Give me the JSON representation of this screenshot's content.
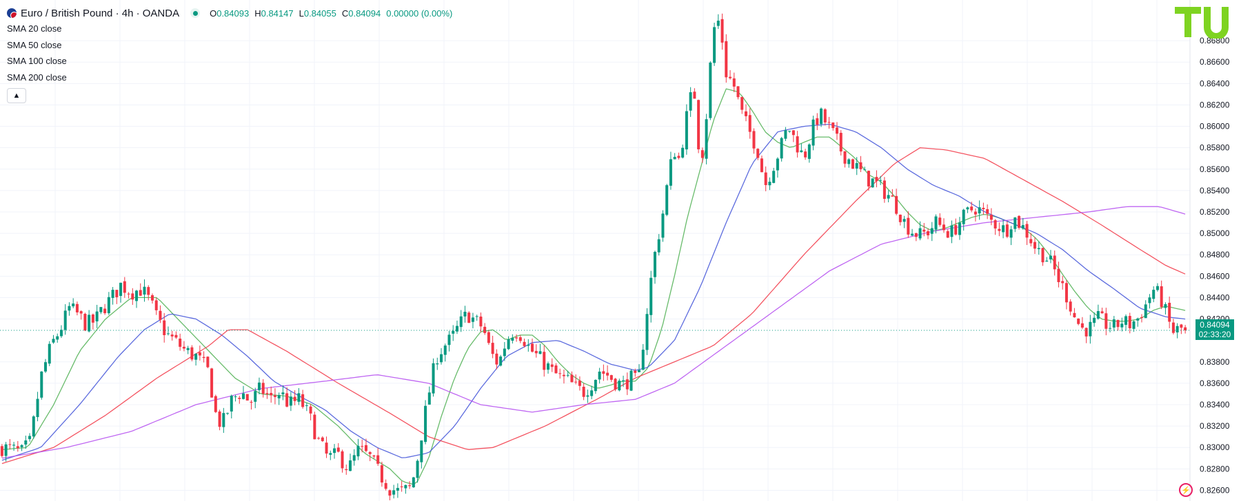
{
  "header": {
    "symbol_title": "Euro / British Pound · 4h · OANDA",
    "ohlc": {
      "o_label": "O",
      "o": "0.84093",
      "h_label": "H",
      "h": "0.84147",
      "l_label": "L",
      "l": "0.84055",
      "c_label": "C",
      "c": "0.84094",
      "change": "0.00000 (0.00%)"
    }
  },
  "indicators": [
    {
      "label": "SMA",
      "value": "20 close",
      "color": "#4caf50"
    },
    {
      "label": "SMA",
      "value": "50 close",
      "color": "#3f51d8"
    },
    {
      "label": "SMA",
      "value": "100 close",
      "color": "#f23645"
    },
    {
      "label": "SMA",
      "value": "200 close",
      "color": "#b44bf0"
    }
  ],
  "price_label": {
    "price": "0.84094",
    "countdown": "02:33:20",
    "color": "#089981"
  },
  "icons": {
    "flag": "eur-gbp-flag-icon",
    "status": "market-status-icon",
    "collapse": "chevron-up-icon",
    "logo": "tu-logo-icon",
    "flash": "lightning-icon"
  },
  "colors": {
    "up": "#089981",
    "down": "#f23645",
    "grid": "#f0f3fa",
    "axis_text": "#131722"
  },
  "chart_data": {
    "type": "candlestick",
    "symbol": "EUR/GBP",
    "timeframe": "4h",
    "ylim": [
      0.825,
      0.8718
    ],
    "ytick_labels": [
      "0.86800",
      "0.86600",
      "0.86400",
      "0.86200",
      "0.86000",
      "0.85800",
      "0.85600",
      "0.85400",
      "0.85200",
      "0.85000",
      "0.84800",
      "0.84600",
      "0.84400",
      "0.84200",
      "0.83800",
      "0.83600",
      "0.83400",
      "0.83200",
      "0.83000",
      "0.82800",
      "0.82600"
    ],
    "yticks": [
      0.868,
      0.866,
      0.864,
      0.862,
      0.86,
      0.858,
      0.856,
      0.854,
      0.852,
      0.85,
      0.848,
      0.846,
      0.844,
      0.842,
      0.838,
      0.836,
      0.834,
      0.832,
      0.83,
      0.828,
      0.826
    ],
    "last_price": 0.84094,
    "candle_count": 300,
    "close_path": [
      [
        0,
        0.83
      ],
      [
        8,
        0.8298
      ],
      [
        15,
        0.8295
      ],
      [
        22,
        0.8305
      ],
      [
        30,
        0.8365
      ],
      [
        38,
        0.8395
      ],
      [
        45,
        0.841
      ],
      [
        52,
        0.843
      ],
      [
        58,
        0.8425
      ],
      [
        65,
        0.8415
      ],
      [
        72,
        0.8418
      ],
      [
        78,
        0.843
      ],
      [
        85,
        0.844
      ],
      [
        92,
        0.8452
      ],
      [
        100,
        0.8445
      ],
      [
        108,
        0.8448
      ],
      [
        115,
        0.8435
      ],
      [
        120,
        0.842
      ],
      [
        128,
        0.8405
      ],
      [
        135,
        0.8398
      ],
      [
        142,
        0.839
      ],
      [
        150,
        0.8385
      ],
      [
        155,
        0.8378
      ],
      [
        160,
        0.837
      ],
      [
        165,
        0.8332
      ],
      [
        170,
        0.832
      ],
      [
        178,
        0.8345
      ],
      [
        185,
        0.8352
      ],
      [
        192,
        0.8342
      ],
      [
        200,
        0.8355
      ],
      [
        208,
        0.8345
      ],
      [
        215,
        0.8352
      ],
      [
        222,
        0.834
      ],
      [
        230,
        0.8345
      ],
      [
        238,
        0.8328
      ],
      [
        245,
        0.8305
      ],
      [
        252,
        0.829
      ],
      [
        260,
        0.8293
      ],
      [
        268,
        0.828
      ],
      [
        276,
        0.8298
      ],
      [
        285,
        0.829
      ],
      [
        292,
        0.8275
      ],
      [
        300,
        0.8262
      ],
      [
        308,
        0.8258
      ],
      [
        316,
        0.8262
      ],
      [
        320,
        0.828
      ],
      [
        324,
        0.831
      ],
      [
        330,
        0.835
      ],
      [
        336,
        0.8385
      ],
      [
        342,
        0.8395
      ],
      [
        348,
        0.8402
      ],
      [
        354,
        0.8415
      ],
      [
        360,
        0.8425
      ],
      [
        366,
        0.8418
      ],
      [
        372,
        0.8412
      ],
      [
        378,
        0.8388
      ],
      [
        384,
        0.8378
      ],
      [
        390,
        0.84
      ],
      [
        396,
        0.841
      ],
      [
        402,
        0.8405
      ],
      [
        408,
        0.8392
      ],
      [
        414,
        0.8385
      ],
      [
        420,
        0.8378
      ],
      [
        426,
        0.837
      ],
      [
        432,
        0.8365
      ],
      [
        438,
        0.8362
      ],
      [
        444,
        0.8355
      ],
      [
        450,
        0.8352
      ],
      [
        456,
        0.836
      ],
      [
        462,
        0.8372
      ],
      [
        468,
        0.8368
      ],
      [
        474,
        0.8362
      ],
      [
        480,
        0.8358
      ],
      [
        486,
        0.8365
      ],
      [
        492,
        0.836
      ],
      [
        496,
        0.84
      ],
      [
        500,
        0.844
      ],
      [
        504,
        0.8475
      ],
      [
        508,
        0.85
      ],
      [
        512,
        0.8525
      ],
      [
        516,
        0.8558
      ],
      [
        520,
        0.8578
      ],
      [
        524,
        0.8568
      ],
      [
        528,
        0.86
      ],
      [
        532,
        0.8625
      ],
      [
        536,
        0.863
      ],
      [
        540,
        0.856
      ],
      [
        544,
        0.86
      ],
      [
        548,
        0.866
      ],
      [
        552,
        0.8705
      ],
      [
        556,
        0.869
      ],
      [
        560,
        0.865
      ],
      [
        566,
        0.8638
      ],
      [
        572,
        0.8612
      ],
      [
        578,
        0.8595
      ],
      [
        584,
        0.858
      ],
      [
        590,
        0.8545
      ],
      [
        596,
        0.8562
      ],
      [
        602,
        0.858
      ],
      [
        608,
        0.86
      ],
      [
        614,
        0.8585
      ],
      [
        620,
        0.857
      ],
      [
        626,
        0.8595
      ],
      [
        632,
        0.8612
      ],
      [
        638,
        0.8602
      ],
      [
        644,
        0.859
      ],
      [
        650,
        0.8575
      ],
      [
        656,
        0.8568
      ],
      [
        662,
        0.856
      ],
      [
        668,
        0.8552
      ],
      [
        674,
        0.8548
      ],
      [
        680,
        0.8542
      ],
      [
        686,
        0.8535
      ],
      [
        692,
        0.8525
      ],
      [
        698,
        0.851
      ],
      [
        704,
        0.8502
      ],
      [
        710,
        0.8498
      ],
      [
        716,
        0.8502
      ],
      [
        722,
        0.851
      ],
      [
        728,
        0.8505
      ],
      [
        734,
        0.85
      ],
      [
        740,
        0.851
      ],
      [
        746,
        0.8518
      ],
      [
        752,
        0.8525
      ],
      [
        758,
        0.852
      ],
      [
        764,
        0.8512
      ],
      [
        770,
        0.8508
      ],
      [
        776,
        0.8502
      ],
      [
        782,
        0.8515
      ],
      [
        788,
        0.8508
      ],
      [
        794,
        0.8498
      ],
      [
        800,
        0.8485
      ],
      [
        806,
        0.848
      ],
      [
        812,
        0.847
      ],
      [
        818,
        0.8455
      ],
      [
        824,
        0.844
      ],
      [
        830,
        0.842
      ],
      [
        836,
        0.841
      ],
      [
        842,
        0.8412
      ],
      [
        848,
        0.842
      ],
      [
        854,
        0.8415
      ],
      [
        860,
        0.8412
      ],
      [
        866,
        0.8418
      ],
      [
        872,
        0.8415
      ],
      [
        878,
        0.842
      ],
      [
        884,
        0.8432
      ],
      [
        890,
        0.8448
      ],
      [
        896,
        0.844
      ],
      [
        900,
        0.8425
      ],
      [
        905,
        0.8408
      ],
      [
        910,
        0.841
      ],
      [
        915,
        0.8412
      ]
    ],
    "sma_paths": {
      "sma20": [
        [
          0,
          0.8298
        ],
        [
          20,
          0.83
        ],
        [
          40,
          0.834
        ],
        [
          60,
          0.839
        ],
        [
          80,
          0.842
        ],
        [
          100,
          0.844
        ],
        [
          120,
          0.844
        ],
        [
          140,
          0.8415
        ],
        [
          160,
          0.839
        ],
        [
          180,
          0.8365
        ],
        [
          200,
          0.835
        ],
        [
          220,
          0.8348
        ],
        [
          240,
          0.834
        ],
        [
          260,
          0.832
        ],
        [
          280,
          0.8295
        ],
        [
          300,
          0.828
        ],
        [
          310,
          0.8268
        ],
        [
          320,
          0.8265
        ],
        [
          330,
          0.829
        ],
        [
          340,
          0.833
        ],
        [
          350,
          0.8365
        ],
        [
          360,
          0.8392
        ],
        [
          370,
          0.8408
        ],
        [
          380,
          0.841
        ],
        [
          390,
          0.84
        ],
        [
          400,
          0.8405
        ],
        [
          410,
          0.8405
        ],
        [
          420,
          0.8395
        ],
        [
          430,
          0.838
        ],
        [
          440,
          0.8368
        ],
        [
          450,
          0.836
        ],
        [
          460,
          0.8355
        ],
        [
          470,
          0.8358
        ],
        [
          480,
          0.8362
        ],
        [
          490,
          0.8362
        ],
        [
          500,
          0.8375
        ],
        [
          510,
          0.841
        ],
        [
          520,
          0.846
        ],
        [
          530,
          0.8515
        ],
        [
          540,
          0.856
        ],
        [
          550,
          0.8605
        ],
        [
          560,
          0.8635
        ],
        [
          570,
          0.8632
        ],
        [
          580,
          0.8615
        ],
        [
          590,
          0.8595
        ],
        [
          600,
          0.8585
        ],
        [
          610,
          0.858
        ],
        [
          620,
          0.8585
        ],
        [
          630,
          0.859
        ],
        [
          640,
          0.859
        ],
        [
          650,
          0.858
        ],
        [
          660,
          0.857
        ],
        [
          670,
          0.8555
        ],
        [
          680,
          0.8548
        ],
        [
          690,
          0.8535
        ],
        [
          700,
          0.852
        ],
        [
          710,
          0.8508
        ],
        [
          720,
          0.8502
        ],
        [
          730,
          0.8505
        ],
        [
          740,
          0.851
        ],
        [
          750,
          0.8515
        ],
        [
          760,
          0.8518
        ],
        [
          770,
          0.8515
        ],
        [
          780,
          0.851
        ],
        [
          790,
          0.8505
        ],
        [
          800,
          0.8495
        ],
        [
          810,
          0.848
        ],
        [
          820,
          0.8462
        ],
        [
          830,
          0.8445
        ],
        [
          840,
          0.843
        ],
        [
          850,
          0.842
        ],
        [
          860,
          0.8418
        ],
        [
          870,
          0.8418
        ],
        [
          880,
          0.842
        ],
        [
          890,
          0.8428
        ],
        [
          900,
          0.8432
        ],
        [
          915,
          0.8428
        ]
      ],
      "sma50": [
        [
          0,
          0.8288
        ],
        [
          30,
          0.83
        ],
        [
          60,
          0.834
        ],
        [
          90,
          0.8385
        ],
        [
          110,
          0.841
        ],
        [
          130,
          0.8425
        ],
        [
          150,
          0.842
        ],
        [
          170,
          0.8405
        ],
        [
          190,
          0.8385
        ],
        [
          210,
          0.8362
        ],
        [
          230,
          0.8348
        ],
        [
          250,
          0.8335
        ],
        [
          270,
          0.8315
        ],
        [
          290,
          0.83
        ],
        [
          310,
          0.829
        ],
        [
          330,
          0.8295
        ],
        [
          350,
          0.832
        ],
        [
          370,
          0.8355
        ],
        [
          390,
          0.8385
        ],
        [
          410,
          0.8398
        ],
        [
          430,
          0.84
        ],
        [
          450,
          0.839
        ],
        [
          470,
          0.8378
        ],
        [
          490,
          0.8372
        ],
        [
          500,
          0.8375
        ],
        [
          520,
          0.84
        ],
        [
          540,
          0.845
        ],
        [
          560,
          0.851
        ],
        [
          580,
          0.8565
        ],
        [
          600,
          0.8595
        ],
        [
          620,
          0.86
        ],
        [
          640,
          0.8602
        ],
        [
          660,
          0.8595
        ],
        [
          680,
          0.858
        ],
        [
          700,
          0.856
        ],
        [
          720,
          0.8545
        ],
        [
          740,
          0.8535
        ],
        [
          760,
          0.852
        ],
        [
          780,
          0.851
        ],
        [
          800,
          0.85
        ],
        [
          820,
          0.8485
        ],
        [
          840,
          0.8465
        ],
        [
          860,
          0.8448
        ],
        [
          880,
          0.843
        ],
        [
          900,
          0.8422
        ],
        [
          915,
          0.842
        ]
      ],
      "sma100": [
        [
          0,
          0.8285
        ],
        [
          40,
          0.83
        ],
        [
          80,
          0.833
        ],
        [
          120,
          0.8365
        ],
        [
          160,
          0.8395
        ],
        [
          175,
          0.841
        ],
        [
          190,
          0.841
        ],
        [
          220,
          0.839
        ],
        [
          260,
          0.836
        ],
        [
          300,
          0.8332
        ],
        [
          330,
          0.831
        ],
        [
          360,
          0.8298
        ],
        [
          380,
          0.83
        ],
        [
          420,
          0.832
        ],
        [
          460,
          0.8345
        ],
        [
          490,
          0.8365
        ],
        [
          520,
          0.838
        ],
        [
          550,
          0.8395
        ],
        [
          580,
          0.8425
        ],
        [
          620,
          0.848
        ],
        [
          660,
          0.853
        ],
        [
          690,
          0.8565
        ],
        [
          710,
          0.858
        ],
        [
          730,
          0.8578
        ],
        [
          760,
          0.857
        ],
        [
          790,
          0.855
        ],
        [
          820,
          0.853
        ],
        [
          850,
          0.8508
        ],
        [
          880,
          0.8485
        ],
        [
          900,
          0.847
        ],
        [
          915,
          0.8462
        ]
      ],
      "sma200": [
        [
          0,
          0.829
        ],
        [
          50,
          0.83
        ],
        [
          100,
          0.8315
        ],
        [
          150,
          0.834
        ],
        [
          200,
          0.8355
        ],
        [
          250,
          0.8362
        ],
        [
          290,
          0.8368
        ],
        [
          330,
          0.836
        ],
        [
          370,
          0.834
        ],
        [
          410,
          0.8333
        ],
        [
          450,
          0.834
        ],
        [
          490,
          0.8345
        ],
        [
          520,
          0.836
        ],
        [
          560,
          0.8395
        ],
        [
          600,
          0.843
        ],
        [
          640,
          0.8465
        ],
        [
          680,
          0.849
        ],
        [
          720,
          0.8502
        ],
        [
          760,
          0.851
        ],
        [
          800,
          0.8515
        ],
        [
          840,
          0.852
        ],
        [
          870,
          0.8525
        ],
        [
          895,
          0.8525
        ],
        [
          915,
          0.8518
        ]
      ]
    }
  }
}
